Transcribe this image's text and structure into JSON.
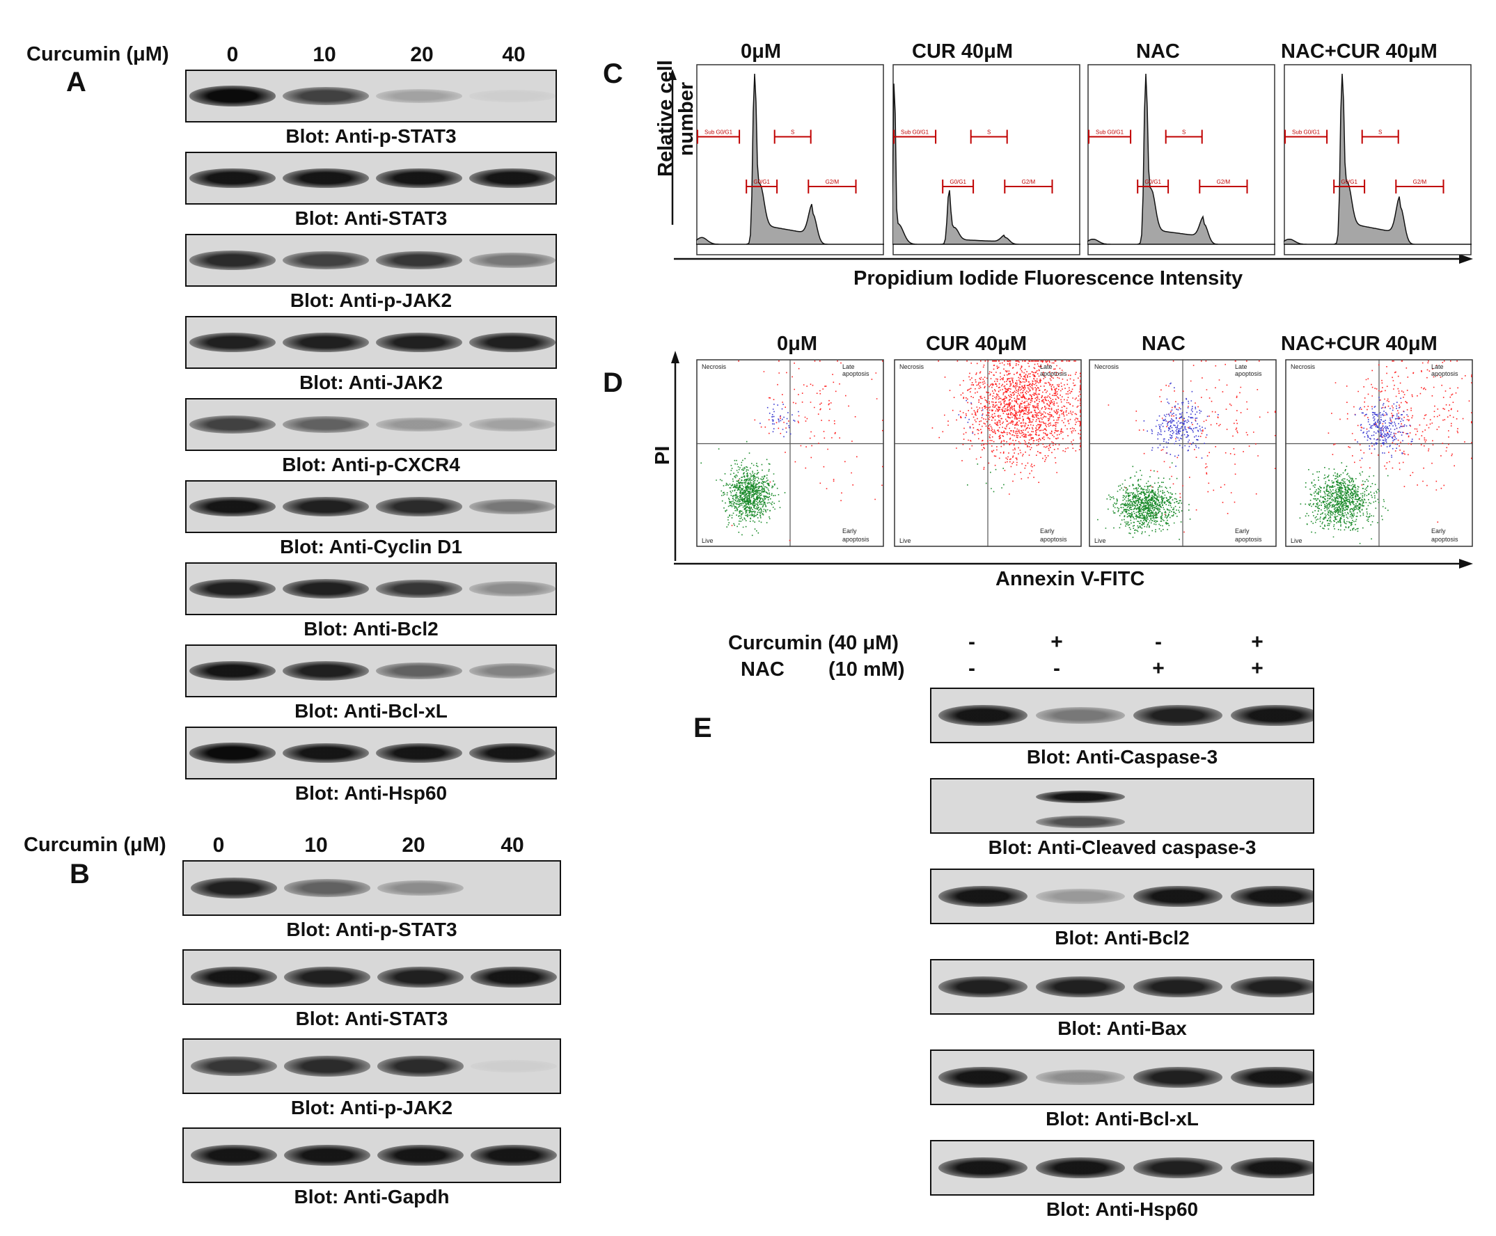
{
  "panels": {
    "A": "A",
    "B": "B",
    "C": "C",
    "D": "D",
    "E": "E"
  },
  "panelA": {
    "treatment_label": "Curcumin (μM)",
    "doses": [
      "0",
      "10",
      "20",
      "40"
    ],
    "blots": [
      {
        "caption": "Blot: Anti-p-STAT3",
        "intensity": [
          0.95,
          0.7,
          0.25,
          0.05
        ]
      },
      {
        "caption": "Blot: Anti-STAT3",
        "intensity": [
          0.9,
          0.9,
          0.9,
          0.9
        ]
      },
      {
        "caption": "Blot: Anti-p-JAK2",
        "intensity": [
          0.8,
          0.7,
          0.75,
          0.45
        ]
      },
      {
        "caption": "Blot: Anti-JAK2",
        "intensity": [
          0.85,
          0.85,
          0.85,
          0.85
        ]
      },
      {
        "caption": "Blot: Anti-p-CXCR4",
        "intensity": [
          0.7,
          0.55,
          0.3,
          0.25
        ]
      },
      {
        "caption": "Blot: Anti-Cyclin D1",
        "intensity": [
          0.9,
          0.85,
          0.8,
          0.45
        ]
      },
      {
        "caption": "Blot: Anti-Bcl2",
        "intensity": [
          0.85,
          0.85,
          0.75,
          0.35
        ]
      },
      {
        "caption": "Blot: Anti-Bcl-xL",
        "intensity": [
          0.9,
          0.85,
          0.55,
          0.4
        ]
      },
      {
        "caption": "Blot: Anti-Hsp60",
        "intensity": [
          0.95,
          0.9,
          0.9,
          0.9
        ]
      }
    ]
  },
  "panelB": {
    "treatment_label": "Curcumin (μM)",
    "doses": [
      "0",
      "10",
      "20",
      "40"
    ],
    "blots": [
      {
        "caption": "Blot: Anti-p-STAT3",
        "intensity": [
          0.85,
          0.55,
          0.35,
          0.0
        ]
      },
      {
        "caption": "Blot: Anti-STAT3",
        "intensity": [
          0.9,
          0.85,
          0.85,
          0.9
        ]
      },
      {
        "caption": "Blot: Anti-p-JAK2",
        "intensity": [
          0.75,
          0.8,
          0.8,
          0.05
        ]
      },
      {
        "caption": "Blot: Anti-Gapdh",
        "intensity": [
          0.9,
          0.9,
          0.9,
          0.9
        ]
      }
    ]
  },
  "panelC": {
    "conditions": [
      "0μM",
      "CUR 40μM",
      "NAC",
      "NAC+CUR  40μM"
    ],
    "ylabel_line1": "Relative cell",
    "ylabel_line2": "number",
    "xlabel": "Propidium Iodide Fluorescence Intensity",
    "gates": [
      "Sub G0/G1",
      "S",
      "G0/G1",
      "G2/M"
    ]
  },
  "panelD": {
    "conditions": [
      "0μM",
      "CUR 40μM",
      "NAC",
      "NAC+CUR  40μM"
    ],
    "ylabel": "PI",
    "xlabel": "Annexin V-FITC",
    "quadrants": {
      "tl": "Necrosis",
      "tr1": "Late",
      "tr2": "apoptosis",
      "bl": "Live",
      "br1": "Early",
      "br2": "apoptosis"
    }
  },
  "panelE": {
    "row1_label": "Curcumin (40 μM)",
    "row1_values": [
      "-",
      "+",
      "-",
      "+"
    ],
    "row2_label": "NAC",
    "row2_unit": "(10 mM)",
    "row2_values": [
      "-",
      "-",
      "+",
      "+"
    ],
    "blots": [
      {
        "caption": "Blot: Anti-Caspase-3",
        "intensity": [
          0.9,
          0.45,
          0.85,
          0.9
        ]
      },
      {
        "caption": "Blot: Anti-Cleaved caspase-3",
        "intensity": [
          0.0,
          0.9,
          0.0,
          0.0
        ]
      },
      {
        "caption": "Blot: Anti-Bcl2",
        "intensity": [
          0.9,
          0.3,
          0.9,
          0.9
        ]
      },
      {
        "caption": "Blot: Anti-Bax",
        "intensity": [
          0.85,
          0.85,
          0.85,
          0.85
        ]
      },
      {
        "caption": "Blot: Anti-Bcl-xL",
        "intensity": [
          0.9,
          0.35,
          0.85,
          0.9
        ]
      },
      {
        "caption": "Blot: Anti-Hsp60",
        "intensity": [
          0.9,
          0.9,
          0.85,
          0.9
        ]
      }
    ]
  },
  "colors": {
    "histogram_fill": "#a6a6a6",
    "gate": "#c00000",
    "live": "#1a8a2a",
    "necrosis": "#3a3ad0",
    "apoptosis": "#ff2020"
  }
}
